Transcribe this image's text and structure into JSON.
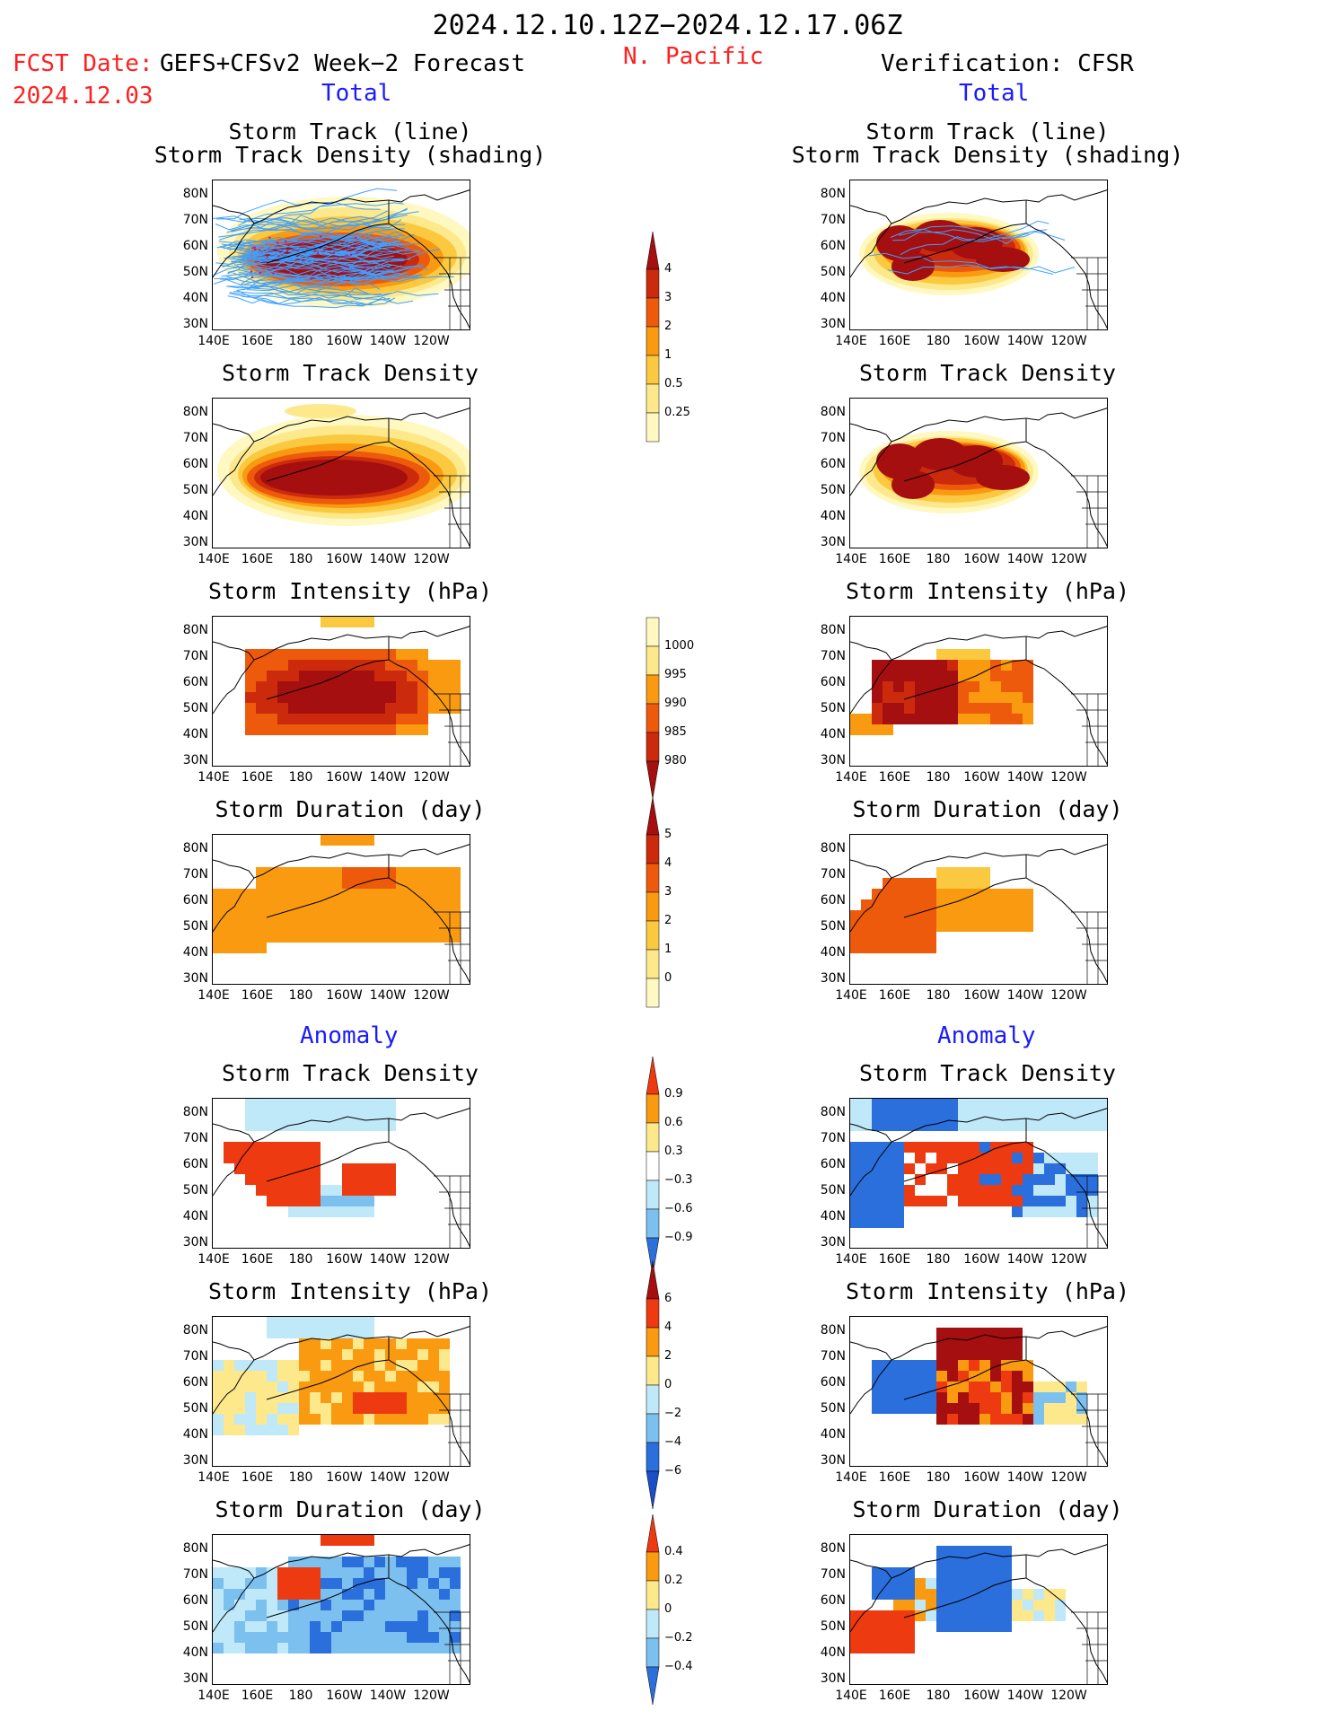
{
  "header": {
    "date_range": "2024.12.10.12Z−2024.12.17.06Z",
    "fcst_label": "FCST Date:",
    "model": "GEFS+CFSv2 Week−2 Forecast",
    "fcst_date": "2024.12.03",
    "region": "N. Pacific",
    "verification": "Verification: CFSR"
  },
  "columns": {
    "total_label": "Total",
    "anomaly_label": "Anomaly"
  },
  "panels": {
    "track_line": [
      "Storm Track (line)",
      "Storm Track Density (shading)"
    ],
    "track_density": "Storm Track Density",
    "intensity": "Storm Intensity (hPa)",
    "duration": "Storm Duration (day)"
  },
  "axes": {
    "lat_ticks": [
      "80N",
      "70N",
      "60N",
      "50N",
      "40N",
      "30N"
    ],
    "lon_ticks": [
      "140E",
      "160E",
      "180",
      "160W",
      "140W",
      "120W"
    ]
  },
  "colorbars": {
    "density": {
      "labels": [
        "4",
        "3",
        "2",
        "1",
        "0.5",
        "0.25"
      ],
      "colors": [
        "#a50f0f",
        "#cc2a0c",
        "#ee5a0c",
        "#f99a10",
        "#fbc940",
        "#fde98c",
        "#fff8c0"
      ]
    },
    "intensity": {
      "labels": [
        "1000",
        "995",
        "990",
        "985",
        "980"
      ],
      "colors": [
        "#fff8c0",
        "#fde98c",
        "#f99a10",
        "#ee5a0c",
        "#cc2a0c",
        "#a50f0f"
      ]
    },
    "duration": {
      "labels": [
        "5",
        "4",
        "3",
        "2",
        "1",
        "0"
      ],
      "colors": [
        "#a50f0f",
        "#cc2a0c",
        "#ee5a0c",
        "#f99a10",
        "#fbc940",
        "#fde98c",
        "#fff8c0"
      ]
    },
    "anom_density": {
      "labels": [
        "0.9",
        "0.6",
        "0.3",
        "−0.3",
        "−0.6",
        "−0.9"
      ],
      "colors": [
        "#ee3a10",
        "#f99a10",
        "#fde98c",
        "#ffffff",
        "#bfe8f8",
        "#7cc0f0",
        "#2a6fdc"
      ]
    },
    "anom_intensity": {
      "labels": [
        "6",
        "4",
        "2",
        "0",
        "−2",
        "−4",
        "−6"
      ],
      "colors": [
        "#a50f0f",
        "#ee3a10",
        "#f99a10",
        "#fde98c",
        "#bfe8f8",
        "#7cc0f0",
        "#2a6fdc",
        "#1a4fc8"
      ]
    },
    "anom_duration": {
      "labels": [
        "0.4",
        "0.2",
        "0",
        "−0.2",
        "−0.4"
      ],
      "colors": [
        "#ee3a10",
        "#f99a10",
        "#fde98c",
        "#bfe8f8",
        "#7cc0f0",
        "#2a6fdc"
      ]
    }
  }
}
